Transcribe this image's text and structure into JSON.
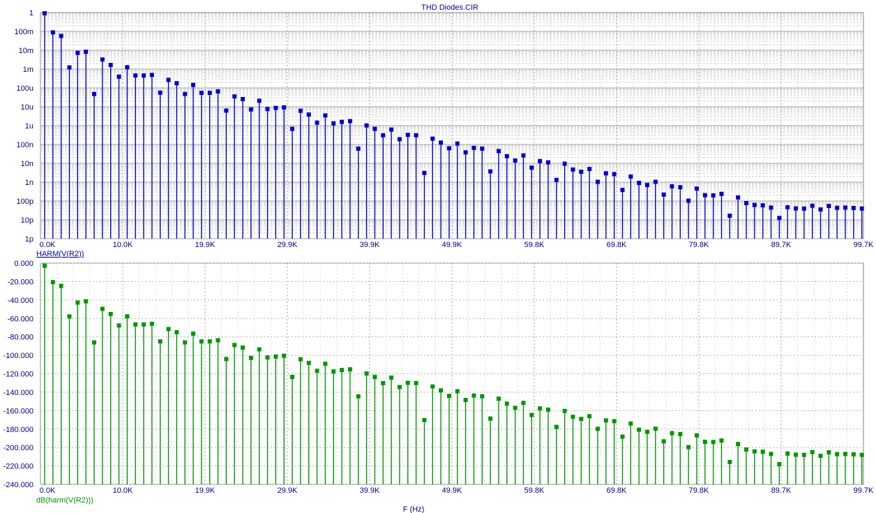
{
  "title": "THD Diodes.CIR",
  "x_axis_label": "F (Hz)",
  "chart_data": [
    {
      "type": "stem",
      "name": "HARM(V(R2))",
      "color": "#0000c8",
      "y_scale": "log",
      "ylim_decades": [
        -12,
        0
      ],
      "y_tick_labels": [
        "1p",
        "10p",
        "100p",
        "1n",
        "10n",
        "100n",
        "1u",
        "10u",
        "100u",
        "1m",
        "10m",
        "100m",
        "1"
      ],
      "x_tick_labels": [
        "0.0K",
        "10.0K",
        "19.9K",
        "29.9K",
        "39.9K",
        "49.9K",
        "59.8K",
        "69.8K",
        "79.8K",
        "89.7K",
        "99.7K"
      ],
      "xlim_khz": [
        0,
        99.7
      ],
      "x_khz": [
        0.0,
        1.0,
        2.0,
        3.0,
        4.0,
        5.0,
        6.0,
        7.0,
        8.0,
        9.0,
        10.0,
        11.0,
        12.0,
        13.0,
        14.0,
        15.0,
        16.0,
        17.0,
        18.0,
        19.0,
        20.0,
        21.0,
        22.0,
        23.0,
        24.0,
        25.0,
        26.0,
        27.0,
        28.0,
        29.0,
        30.0,
        31.0,
        32.0,
        33.0,
        34.0,
        35.0,
        36.0,
        37.0,
        38.0,
        39.0,
        40.0,
        41.0,
        42.0,
        43.0,
        44.0,
        45.0,
        46.0,
        47.0,
        48.0,
        49.0,
        50.0,
        51.0,
        52.0,
        53.0,
        54.0,
        55.0,
        56.0,
        57.0,
        58.0,
        59.0,
        60.0,
        61.0,
        62.0,
        63.0,
        64.0,
        65.0,
        66.0,
        67.0,
        68.0,
        69.0,
        70.0,
        71.0,
        72.0,
        73.0,
        74.0,
        75.0,
        76.0,
        77.0,
        78.0,
        79.0,
        80.0,
        81.0,
        82.0,
        83.0,
        84.0,
        85.0,
        86.0,
        87.0,
        88.0,
        89.0,
        90.0,
        91.0,
        92.0,
        93.0,
        94.0,
        95.0,
        96.0,
        97.0,
        98.0,
        99.0
      ],
      "log10_values": [
        -0.04,
        -1.05,
        -1.24,
        -2.91,
        -2.14,
        -2.08,
        -4.32,
        -2.49,
        -2.78,
        -3.4,
        -2.9,
        -3.34,
        -3.34,
        -3.31,
        -4.25,
        -3.57,
        -3.75,
        -4.32,
        -3.84,
        -4.26,
        -4.26,
        -4.18,
        -5.2,
        -4.45,
        -4.59,
        -5.14,
        -4.68,
        -5.12,
        -5.06,
        -5.03,
        -6.17,
        -5.21,
        -5.41,
        -5.84,
        -5.46,
        -5.88,
        -5.8,
        -5.76,
        -7.22,
        -5.99,
        -6.17,
        -6.51,
        -6.21,
        -6.72,
        -6.49,
        -6.51,
        -8.51,
        -6.69,
        -6.9,
        -7.2,
        -6.95,
        -7.42,
        -7.18,
        -7.22,
        -8.43,
        -7.35,
        -7.62,
        -7.85,
        -7.58,
        -8.23,
        -7.88,
        -7.95,
        -8.88,
        -8.02,
        -8.33,
        -8.45,
        -8.3,
        -8.98,
        -8.53,
        -8.57,
        -9.41,
        -8.7,
        -9.04,
        -9.15,
        -8.98,
        -9.66,
        -9.22,
        -9.27,
        -9.98,
        -9.34,
        -9.69,
        -9.7,
        -9.62,
        -10.78,
        -9.81,
        -10.11,
        -10.21,
        -10.23,
        -10.35,
        -10.9,
        -10.33,
        -10.39,
        -10.4,
        -10.25,
        -10.45,
        -10.26,
        -10.36,
        -10.35,
        -10.37,
        -10.4
      ]
    },
    {
      "type": "stem",
      "name": "dB(harm(V(R2)))",
      "color": "#009600",
      "y_scale": "linear",
      "ylim": [
        -240,
        0
      ],
      "y_tick_labels": [
        "0.000",
        "-20.000",
        "-40.000",
        "-60.000",
        "-80.000",
        "-100.000",
        "-120.000",
        "-140.000",
        "-160.000",
        "-180.000",
        "-200.000",
        "-220.000",
        "-240.000"
      ],
      "x_tick_labels": [
        "0.0K",
        "10.0K",
        "19.9K",
        "29.9K",
        "39.9K",
        "49.9K",
        "59.8K",
        "69.8K",
        "79.8K",
        "89.7K",
        "99.7K"
      ],
      "xlim_khz": [
        0,
        99.7
      ],
      "x_khz": [
        0.0,
        1.0,
        2.0,
        3.0,
        4.0,
        5.0,
        6.0,
        7.0,
        8.0,
        9.0,
        10.0,
        11.0,
        12.0,
        13.0,
        14.0,
        15.0,
        16.0,
        17.0,
        18.0,
        19.0,
        20.0,
        21.0,
        22.0,
        23.0,
        24.0,
        25.0,
        26.0,
        27.0,
        28.0,
        29.0,
        30.0,
        31.0,
        32.0,
        33.0,
        34.0,
        35.0,
        36.0,
        37.0,
        38.0,
        39.0,
        40.0,
        41.0,
        42.0,
        43.0,
        44.0,
        45.0,
        46.0,
        47.0,
        48.0,
        49.0,
        50.0,
        51.0,
        52.0,
        53.0,
        54.0,
        55.0,
        56.0,
        57.0,
        58.0,
        59.0,
        60.0,
        61.0,
        62.0,
        63.0,
        64.0,
        65.0,
        66.0,
        67.0,
        68.0,
        69.0,
        70.0,
        71.0,
        72.0,
        73.0,
        74.0,
        75.0,
        76.0,
        77.0,
        78.0,
        79.0,
        80.0,
        81.0,
        82.0,
        83.0,
        84.0,
        85.0,
        86.0,
        87.0,
        88.0,
        89.0,
        90.0,
        91.0,
        92.0,
        93.0,
        94.0,
        95.0,
        96.0,
        97.0,
        98.0,
        99.0
      ],
      "values": [
        -2.8,
        -20.6,
        -24.7,
        -57.8,
        -42.8,
        -41.4,
        -86.0,
        -49.6,
        -55.2,
        -67.6,
        -57.7,
        -66.5,
        -66.5,
        -65.8,
        -84.9,
        -71.5,
        -74.9,
        -86.0,
        -76.5,
        -84.9,
        -84.9,
        -83.6,
        -104.0,
        -88.8,
        -91.6,
        -102.8,
        -93.5,
        -102.3,
        -101.3,
        -100.5,
        -123.4,
        -104.2,
        -108.2,
        -116.8,
        -109.2,
        -117.5,
        -115.9,
        -115.2,
        -144.5,
        -119.7,
        -123.4,
        -130.2,
        -124.2,
        -134.4,
        -129.8,
        -130.1,
        -170.2,
        -133.8,
        -138.0,
        -144.0,
        -138.9,
        -148.4,
        -143.6,
        -144.4,
        -168.6,
        -147.0,
        -152.4,
        -157.0,
        -151.6,
        -164.7,
        -157.6,
        -158.9,
        -177.6,
        -160.3,
        -166.7,
        -169.0,
        -166.0,
        -179.7,
        -170.6,
        -171.4,
        -188.2,
        -174.0,
        -180.7,
        -183.0,
        -179.6,
        -193.3,
        -184.4,
        -185.4,
        -199.6,
        -186.8,
        -193.8,
        -194.0,
        -192.4,
        -215.7,
        -196.2,
        -202.2,
        -204.2,
        -204.6,
        -207.0,
        -218.0,
        -206.5,
        -207.8,
        -208.0,
        -205.0,
        -209.0,
        -205.2,
        -207.2,
        -207.0,
        -207.4,
        -208.0
      ]
    }
  ]
}
